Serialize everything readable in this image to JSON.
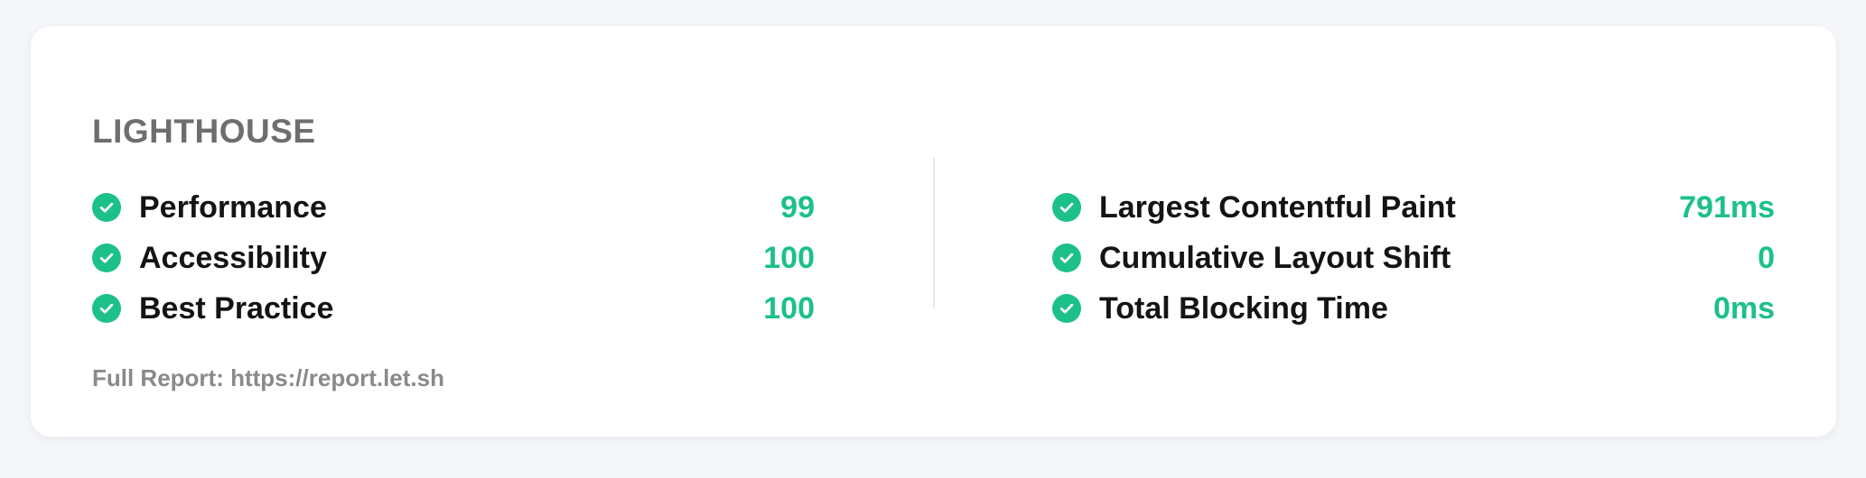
{
  "card": {
    "title": "LIGHTHOUSE",
    "left_metrics": [
      {
        "label": "Performance",
        "value": "99",
        "icon": "check-circle-icon"
      },
      {
        "label": "Accessibility",
        "value": "100",
        "icon": "check-circle-icon"
      },
      {
        "label": "Best Practice",
        "value": "100",
        "icon": "check-circle-icon"
      }
    ],
    "right_metrics": [
      {
        "label": "Largest Contentful Paint",
        "value": "791ms",
        "icon": "check-circle-icon"
      },
      {
        "label": "Cumulative Layout Shift",
        "value": "0",
        "icon": "check-circle-icon"
      },
      {
        "label": "Total Blocking Time",
        "value": "0ms",
        "icon": "check-circle-icon"
      }
    ],
    "footer": "Full Report: https://report.let.sh"
  },
  "colors": {
    "accent": "#1cc08a",
    "title": "#6e6e6e",
    "label": "#141414",
    "footer": "#8a8a8a",
    "card_background": "#ffffff",
    "page_background": "#f4f6f9"
  }
}
